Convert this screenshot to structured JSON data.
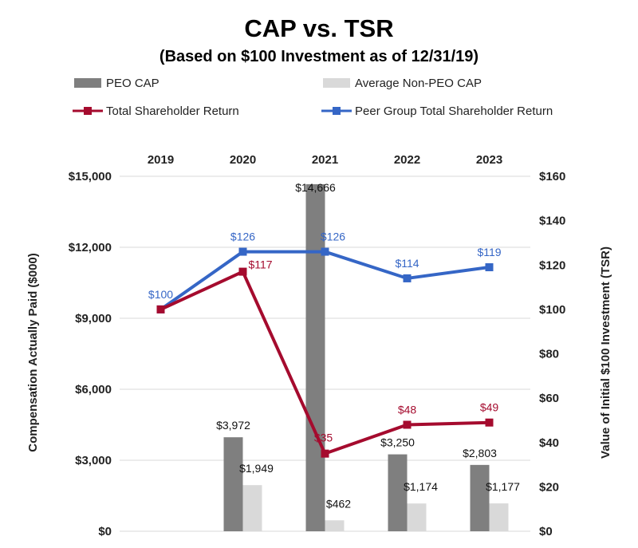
{
  "chart_data": {
    "type": "bar",
    "title": "CAP vs. TSR",
    "subtitle": "(Based on $100 Investment as of 12/31/19)",
    "categories": [
      "2019",
      "2020",
      "2021",
      "2022",
      "2023"
    ],
    "ylabel": "Compensation Actually Paid ($000)",
    "y2label": "Value of Initial $100 Investment (TSR)",
    "ylim": [
      0,
      15000
    ],
    "y2lim": [
      0,
      160
    ],
    "yticks": [
      "$0",
      "$3,000",
      "$6,000",
      "$9,000",
      "$12,000",
      "$15,000"
    ],
    "y2ticks": [
      "$0",
      "$20",
      "$40",
      "$60",
      "$80",
      "$100",
      "$120",
      "$140",
      "$160"
    ],
    "grid": true,
    "legend_position": "top",
    "series": [
      {
        "name": "PEO CAP",
        "kind": "bar",
        "axis": "left",
        "color": "#7f7f7f",
        "values": [
          null,
          3972,
          14666,
          3250,
          2803
        ],
        "labels": [
          "",
          "$3,972",
          "$14,666",
          "$3,250",
          "$2,803"
        ]
      },
      {
        "name": "Average Non-PEO CAP",
        "kind": "bar",
        "axis": "left",
        "color": "#d9d9d9",
        "values": [
          null,
          1949,
          462,
          1174,
          1177
        ],
        "labels": [
          "",
          "$1,949",
          "$462",
          "$1,174",
          "$1,177"
        ]
      },
      {
        "name": "Total Shareholder Return",
        "kind": "line",
        "axis": "right",
        "color": "#a50b2e",
        "values": [
          100,
          117,
          35,
          48,
          49
        ],
        "labels": [
          "",
          "$117",
          "$35",
          "$48",
          "$49"
        ]
      },
      {
        "name": "Peer Group Total Shareholder Return",
        "kind": "line",
        "axis": "right",
        "color": "#3566c6",
        "values": [
          100,
          126,
          126,
          114,
          119
        ],
        "labels": [
          "$100",
          "$126",
          "$126",
          "$114",
          "$119"
        ]
      }
    ]
  }
}
